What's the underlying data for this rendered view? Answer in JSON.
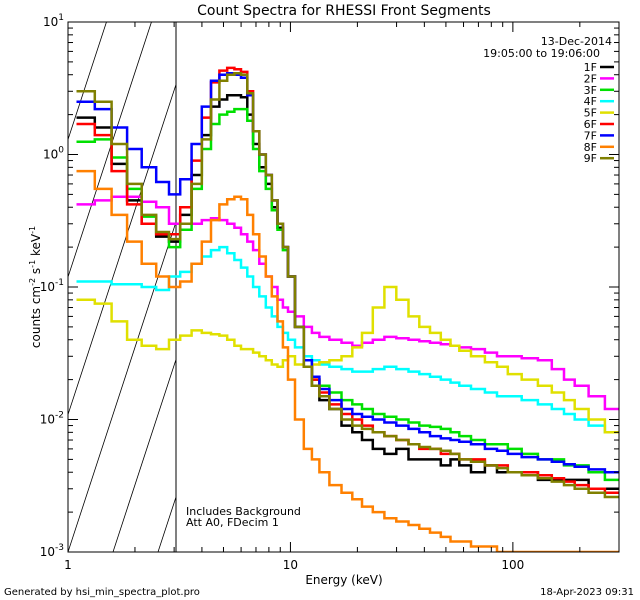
{
  "chart_data": {
    "type": "line",
    "title": "Count Spectra for RHESSI Front Segments",
    "xlabel": "Energy (keV)",
    "ylabel_main": "counts cm",
    "ylabel_exp1": "-2",
    "ylabel_s": " s",
    "ylabel_exp2": "-1",
    "ylabel_kev": " keV",
    "ylabel_exp3": "-1",
    "xscale": "log",
    "yscale": "log",
    "xlim": [
      1,
      300
    ],
    "ylim": [
      0.001,
      10
    ],
    "x_ticks": [
      {
        "v": 1,
        "label": "1"
      },
      {
        "v": 10,
        "label": "10"
      },
      {
        "v": 100,
        "label": "100"
      }
    ],
    "y_ticks": [
      {
        "v": 0.001,
        "base": "10",
        "exp": "-3"
      },
      {
        "v": 0.01,
        "base": "10",
        "exp": "-2"
      },
      {
        "v": 0.1,
        "base": "10",
        "exp": "-1"
      },
      {
        "v": 1,
        "base": "10",
        "exp": "0"
      },
      {
        "v": 10,
        "base": "10",
        "exp": "1"
      }
    ],
    "date": "13-Dec-2014",
    "time_range": "19:05:00 to 19:06:00",
    "notes": [
      "Includes Background",
      "Att A0, FDecim 1"
    ],
    "hatched_region_kev": [
      1,
      3
    ],
    "footer_left": "Generated by hsi_min_spectra_plot.pro",
    "footer_right": "18-Apr-2023 09:31",
    "series": [
      {
        "name": "1F",
        "color": "#000000",
        "x": [
          1.2,
          1.45,
          1.7,
          2.0,
          2.3,
          2.7,
          3.0,
          3.4,
          3.8,
          4.2,
          4.6,
          5.0,
          5.4,
          5.8,
          6.2,
          6.6,
          7.0,
          7.5,
          8.0,
          8.5,
          9.0,
          9.5,
          10,
          11,
          12,
          13,
          14,
          16,
          18,
          20,
          22,
          25,
          28,
          32,
          36,
          40,
          45,
          50,
          55,
          60,
          70,
          80,
          90,
          100,
          120,
          140,
          160,
          180,
          200,
          240,
          280
        ],
        "y": [
          1.9,
          1.6,
          0.85,
          0.45,
          0.3,
          0.24,
          0.22,
          0.35,
          0.7,
          1.4,
          2.3,
          2.6,
          2.8,
          2.8,
          2.7,
          2.0,
          1.2,
          0.8,
          0.6,
          0.4,
          0.28,
          0.2,
          0.12,
          0.05,
          0.025,
          0.018,
          0.014,
          0.012,
          0.009,
          0.008,
          0.007,
          0.006,
          0.0055,
          0.006,
          0.005,
          0.005,
          0.005,
          0.0045,
          0.005,
          0.0045,
          0.004,
          0.0045,
          0.004,
          0.004,
          0.004,
          0.0035,
          0.0035,
          0.0035,
          0.0035,
          0.003,
          0.003
        ]
      },
      {
        "name": "2F",
        "color": "#ff00ff",
        "x": [
          1.2,
          1.45,
          1.7,
          2.0,
          2.3,
          2.7,
          3.0,
          3.4,
          3.8,
          4.2,
          4.6,
          5.0,
          5.4,
          5.8,
          6.2,
          6.6,
          7.0,
          7.5,
          8.0,
          8.5,
          9.0,
          9.5,
          10,
          11,
          12,
          13,
          14,
          16,
          18,
          20,
          22,
          25,
          28,
          32,
          36,
          40,
          45,
          50,
          55,
          60,
          70,
          80,
          90,
          100,
          120,
          140,
          160,
          180,
          200,
          240,
          280
        ],
        "y": [
          0.42,
          0.45,
          0.48,
          0.48,
          0.44,
          0.4,
          0.3,
          0.3,
          0.3,
          0.32,
          0.33,
          0.32,
          0.3,
          0.28,
          0.25,
          0.22,
          0.19,
          0.15,
          0.12,
          0.1,
          0.08,
          0.07,
          0.065,
          0.06,
          0.05,
          0.045,
          0.042,
          0.04,
          0.038,
          0.036,
          0.038,
          0.04,
          0.042,
          0.041,
          0.04,
          0.039,
          0.038,
          0.037,
          0.036,
          0.035,
          0.034,
          0.032,
          0.03,
          0.03,
          0.029,
          0.028,
          0.024,
          0.02,
          0.018,
          0.015,
          0.012
        ]
      },
      {
        "name": "3F",
        "color": "#00e000",
        "x": [
          1.2,
          1.45,
          1.7,
          2.0,
          2.3,
          2.7,
          3.0,
          3.4,
          3.8,
          4.2,
          4.6,
          5.0,
          5.4,
          5.8,
          6.2,
          6.6,
          7.0,
          7.5,
          8.0,
          8.5,
          9.0,
          9.5,
          10,
          11,
          12,
          13,
          14,
          16,
          18,
          20,
          22,
          25,
          28,
          32,
          36,
          40,
          45,
          50,
          55,
          60,
          70,
          80,
          90,
          100,
          120,
          140,
          160,
          180,
          200,
          240,
          280
        ],
        "y": [
          1.25,
          1.3,
          0.95,
          0.55,
          0.34,
          0.25,
          0.2,
          0.27,
          0.55,
          1.1,
          1.7,
          2.0,
          2.1,
          2.2,
          2.2,
          1.8,
          1.1,
          0.75,
          0.55,
          0.38,
          0.27,
          0.19,
          0.12,
          0.05,
          0.028,
          0.02,
          0.018,
          0.016,
          0.014,
          0.013,
          0.012,
          0.011,
          0.0105,
          0.01,
          0.0095,
          0.009,
          0.0088,
          0.0085,
          0.008,
          0.0075,
          0.007,
          0.0065,
          0.0065,
          0.006,
          0.0055,
          0.005,
          0.005,
          0.0045,
          0.0045,
          0.004,
          0.0035
        ]
      },
      {
        "name": "4F",
        "color": "#00ffff",
        "x": [
          1.2,
          1.45,
          1.7,
          2.0,
          2.3,
          2.7,
          3.0,
          3.4,
          3.8,
          4.2,
          4.6,
          5.0,
          5.4,
          5.8,
          6.2,
          6.6,
          7.0,
          7.5,
          8.0,
          8.5,
          9.0,
          9.5,
          10,
          11,
          12,
          13,
          14,
          16,
          18,
          20,
          22,
          25,
          28,
          32,
          36,
          40,
          45,
          50,
          55,
          60,
          70,
          80,
          90,
          100,
          120,
          140,
          160,
          180,
          200,
          240,
          280
        ],
        "y": [
          0.11,
          0.11,
          0.105,
          0.105,
          0.1,
          0.095,
          0.12,
          0.13,
          0.15,
          0.17,
          0.19,
          0.2,
          0.18,
          0.16,
          0.14,
          0.12,
          0.1,
          0.085,
          0.07,
          0.06,
          0.05,
          0.045,
          0.04,
          0.035,
          0.03,
          0.028,
          0.026,
          0.025,
          0.024,
          0.023,
          0.023,
          0.024,
          0.025,
          0.024,
          0.023,
          0.022,
          0.021,
          0.02,
          0.019,
          0.018,
          0.017,
          0.016,
          0.015,
          0.015,
          0.014,
          0.013,
          0.012,
          0.011,
          0.01,
          0.009,
          0.008
        ]
      },
      {
        "name": "5F",
        "color": "#e0e000",
        "x": [
          1.2,
          1.45,
          1.7,
          2.0,
          2.3,
          2.7,
          3.0,
          3.4,
          3.8,
          4.2,
          4.6,
          5.0,
          5.4,
          5.8,
          6.2,
          6.6,
          7.0,
          7.5,
          8.0,
          8.5,
          9.0,
          9.5,
          10,
          11,
          12,
          13,
          14,
          16,
          18,
          20,
          22,
          25,
          28,
          32,
          36,
          40,
          45,
          50,
          55,
          60,
          70,
          80,
          90,
          100,
          120,
          140,
          160,
          180,
          200,
          240,
          280
        ],
        "y": [
          0.08,
          0.075,
          0.055,
          0.04,
          0.036,
          0.034,
          0.04,
          0.043,
          0.047,
          0.045,
          0.044,
          0.043,
          0.04,
          0.036,
          0.034,
          0.034,
          0.032,
          0.03,
          0.028,
          0.026,
          0.025,
          0.028,
          0.03,
          0.026,
          0.025,
          0.026,
          0.027,
          0.028,
          0.03,
          0.035,
          0.045,
          0.07,
          0.1,
          0.08,
          0.06,
          0.05,
          0.045,
          0.04,
          0.036,
          0.033,
          0.03,
          0.027,
          0.025,
          0.022,
          0.02,
          0.018,
          0.016,
          0.014,
          0.012,
          0.01,
          0.008
        ]
      },
      {
        "name": "6F",
        "color": "#ff0000",
        "x": [
          1.2,
          1.45,
          1.7,
          2.0,
          2.3,
          2.7,
          3.0,
          3.4,
          3.8,
          4.2,
          4.6,
          5.0,
          5.4,
          5.8,
          6.2,
          6.6,
          7.0,
          7.5,
          8.0,
          8.5,
          9.0,
          9.5,
          10,
          11,
          12,
          13,
          14,
          16,
          18,
          20,
          22,
          25,
          28,
          32,
          36,
          40,
          45,
          50,
          55,
          60,
          70,
          80,
          90,
          100,
          120,
          140,
          160,
          180,
          200,
          240,
          280
        ],
        "y": [
          1.7,
          1.4,
          0.75,
          0.42,
          0.3,
          0.25,
          0.25,
          0.4,
          0.9,
          1.9,
          3.5,
          4.3,
          4.5,
          4.4,
          4.2,
          3.0,
          1.5,
          1.0,
          0.7,
          0.45,
          0.3,
          0.2,
          0.12,
          0.05,
          0.025,
          0.02,
          0.016,
          0.013,
          0.011,
          0.01,
          0.009,
          0.008,
          0.0075,
          0.007,
          0.0065,
          0.006,
          0.006,
          0.0055,
          0.0055,
          0.005,
          0.005,
          0.0045,
          0.0045,
          0.004,
          0.004,
          0.0038,
          0.0036,
          0.0034,
          0.0032,
          0.003,
          0.0028
        ]
      },
      {
        "name": "7F",
        "color": "#0000ff",
        "x": [
          1.2,
          1.45,
          1.7,
          2.0,
          2.3,
          2.7,
          3.0,
          3.4,
          3.8,
          4.2,
          4.6,
          5.0,
          5.4,
          5.8,
          6.2,
          6.6,
          7.0,
          7.5,
          8.0,
          8.5,
          9.0,
          9.5,
          10,
          11,
          12,
          13,
          14,
          16,
          18,
          20,
          22,
          25,
          28,
          32,
          36,
          40,
          45,
          50,
          55,
          60,
          70,
          80,
          90,
          100,
          120,
          140,
          160,
          180,
          200,
          240,
          280
        ],
        "y": [
          2.5,
          2.2,
          1.6,
          1.1,
          0.8,
          0.62,
          0.5,
          0.65,
          1.2,
          2.3,
          3.6,
          4.0,
          4.1,
          4.0,
          3.8,
          2.8,
          1.5,
          1.0,
          0.7,
          0.45,
          0.3,
          0.2,
          0.12,
          0.05,
          0.028,
          0.021,
          0.017,
          0.014,
          0.012,
          0.011,
          0.0105,
          0.01,
          0.0095,
          0.009,
          0.0085,
          0.008,
          0.0075,
          0.0072,
          0.007,
          0.0068,
          0.0065,
          0.006,
          0.0058,
          0.0055,
          0.0052,
          0.005,
          0.0048,
          0.0046,
          0.0044,
          0.0042,
          0.004
        ]
      },
      {
        "name": "8F",
        "color": "#ff8000",
        "x": [
          1.2,
          1.45,
          1.7,
          2.0,
          2.3,
          2.7,
          3.0,
          3.4,
          3.8,
          4.2,
          4.6,
          5.0,
          5.4,
          5.8,
          6.2,
          6.6,
          7.0,
          7.5,
          8.0,
          8.5,
          9.0,
          9.5,
          10,
          11,
          12,
          13,
          14,
          16,
          18,
          20,
          22,
          25,
          28,
          32,
          36,
          40,
          45,
          50,
          55,
          60,
          70,
          80,
          90,
          100,
          120,
          140,
          160,
          180,
          200,
          240,
          280
        ],
        "y": [
          0.75,
          0.55,
          0.35,
          0.22,
          0.15,
          0.12,
          0.1,
          0.11,
          0.15,
          0.22,
          0.32,
          0.42,
          0.46,
          0.48,
          0.46,
          0.35,
          0.25,
          0.17,
          0.12,
          0.085,
          0.055,
          0.035,
          0.02,
          0.01,
          0.006,
          0.005,
          0.004,
          0.0032,
          0.0028,
          0.0025,
          0.0022,
          0.002,
          0.0018,
          0.0017,
          0.0016,
          0.0015,
          0.0014,
          0.0013,
          0.0012,
          0.0012,
          0.0011,
          0.0011,
          0.001,
          0.001,
          0.001,
          0.001,
          0.001,
          0.001,
          0.001,
          0.001,
          0.001
        ]
      },
      {
        "name": "9F",
        "color": "#808000",
        "x": [
          1.2,
          1.45,
          1.7,
          2.0,
          2.3,
          2.7,
          3.0,
          3.4,
          3.8,
          4.2,
          4.6,
          5.0,
          5.4,
          5.8,
          6.2,
          6.6,
          7.0,
          7.5,
          8.0,
          8.5,
          9.0,
          9.5,
          10,
          11,
          12,
          13,
          14,
          16,
          18,
          20,
          22,
          25,
          28,
          32,
          36,
          40,
          45,
          50,
          55,
          60,
          70,
          80,
          90,
          100,
          120,
          140,
          160,
          180,
          200,
          240,
          280
        ],
        "y": [
          3.0,
          2.5,
          1.2,
          0.6,
          0.35,
          0.26,
          0.23,
          0.3,
          0.6,
          1.3,
          2.6,
          3.6,
          4.0,
          4.1,
          4.0,
          2.9,
          1.5,
          1.0,
          0.7,
          0.45,
          0.3,
          0.2,
          0.12,
          0.05,
          0.025,
          0.018,
          0.015,
          0.012,
          0.01,
          0.009,
          0.0085,
          0.008,
          0.0075,
          0.007,
          0.0065,
          0.0062,
          0.006,
          0.0058,
          0.0055,
          0.005,
          0.0048,
          0.0045,
          0.0043,
          0.004,
          0.0038,
          0.0036,
          0.0034,
          0.0032,
          0.003,
          0.0028,
          0.0026
        ]
      }
    ]
  }
}
